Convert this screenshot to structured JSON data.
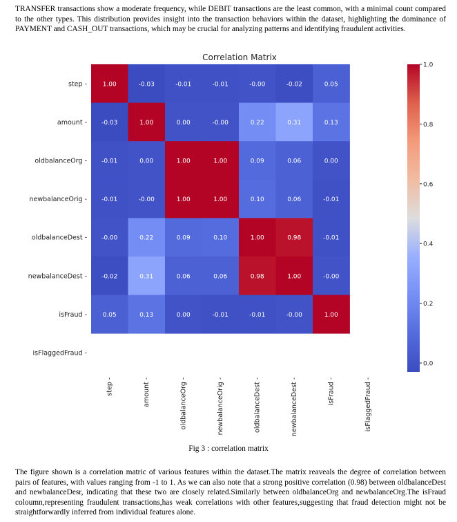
{
  "text": {
    "intro": "TRANSFER transactions show a moderate frequency, while DEBIT transactions are the least common, with a minimal count compared to the other types. This distribution provides insight into the transaction behaviors within the dataset, highlighting the dominance of PAYMENT and CASH_OUT transactions, which may be crucial for analyzing patterns and identifying fraudulent activities.",
    "caption": "Fig 3 : correlation matrix",
    "discussion": "The figure shown is a correlation matric of various features within the dataset.The matrix reaveals the degree of correlation between pairs of features, with values ranging from -1 to 1. As we can also note that a strong positive correlation (0.98) between oldbalanceDest and newbalanceDesr, indicating that these two are closely related.Similarly between oldbalanceOrg and newbalanceOrg.The isFraud coloumn,representing fraudulent transactions,has weak correlations with other features,suggesting that fraud detection might not be straightforwardly inferred from individual features alone."
  },
  "chart_data": {
    "type": "heatmap",
    "title": "Correlation Matrix",
    "row_labels": [
      "step",
      "amount",
      "oldbalanceOrg",
      "newbalanceOrig",
      "oldbalanceDest",
      "newbalanceDest",
      "isFraud",
      "isFlaggedFraud"
    ],
    "col_labels": [
      "step",
      "amount",
      "oldbalanceOrg",
      "newbalanceOrig",
      "oldbalanceDest",
      "newbalanceDest",
      "isFraud",
      "isFlaggedFraud"
    ],
    "values": [
      [
        1.0,
        -0.03,
        -0.01,
        -0.01,
        -0.0,
        -0.02,
        0.05,
        null
      ],
      [
        -0.03,
        1.0,
        0.0,
        -0.0,
        0.22,
        0.31,
        0.13,
        null
      ],
      [
        -0.01,
        0.0,
        1.0,
        1.0,
        0.09,
        0.06,
        0.0,
        null
      ],
      [
        -0.01,
        -0.0,
        1.0,
        1.0,
        0.1,
        0.06,
        -0.01,
        null
      ],
      [
        -0.0,
        0.22,
        0.09,
        0.1,
        1.0,
        0.98,
        -0.01,
        null
      ],
      [
        -0.02,
        0.31,
        0.06,
        0.06,
        0.98,
        1.0,
        -0.0,
        null
      ],
      [
        0.05,
        0.13,
        0.0,
        -0.01,
        -0.01,
        -0.0,
        1.0,
        null
      ],
      [
        null,
        null,
        null,
        null,
        null,
        null,
        null,
        null
      ]
    ],
    "value_labels": [
      [
        "1.00",
        "-0.03",
        "-0.01",
        "-0.01",
        "-0.00",
        "-0.02",
        "0.05",
        ""
      ],
      [
        "-0.03",
        "1.00",
        "0.00",
        "-0.00",
        "0.22",
        "0.31",
        "0.13",
        ""
      ],
      [
        "-0.01",
        "0.00",
        "1.00",
        "1.00",
        "0.09",
        "0.06",
        "0.00",
        ""
      ],
      [
        "-0.01",
        "-0.00",
        "1.00",
        "1.00",
        "0.10",
        "0.06",
        "-0.01",
        ""
      ],
      [
        "-0.00",
        "0.22",
        "0.09",
        "0.10",
        "1.00",
        "0.98",
        "-0.01",
        ""
      ],
      [
        "-0.02",
        "0.31",
        "0.06",
        "0.06",
        "0.98",
        "1.00",
        "-0.00",
        ""
      ],
      [
        "0.05",
        "0.13",
        "0.00",
        "-0.01",
        "-0.01",
        "-0.00",
        "1.00",
        ""
      ],
      [
        "",
        "",
        "",
        "",
        "",
        "",
        "",
        ""
      ]
    ],
    "colormap": "coolwarm",
    "colorbar": {
      "range": [
        -0.03,
        1.0
      ],
      "ticks": [
        0.0,
        0.2,
        0.4,
        0.6,
        0.8,
        1.0
      ],
      "tick_labels": [
        "0.0",
        "0.2",
        "0.4",
        "0.6",
        "0.8",
        "1.0"
      ]
    },
    "grid": false
  }
}
